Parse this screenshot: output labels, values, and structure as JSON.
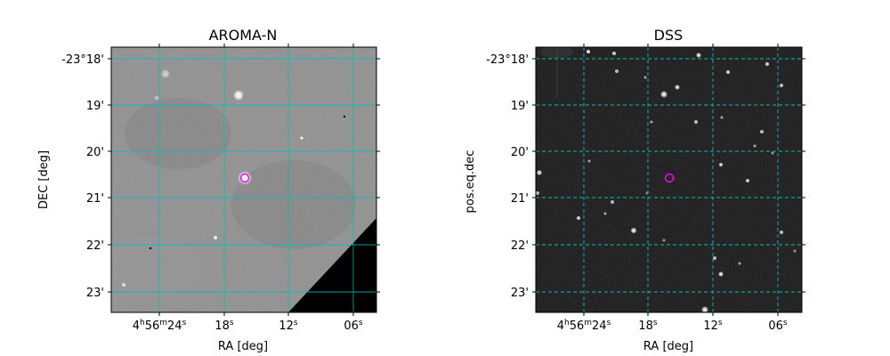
{
  "panels": [
    {
      "title": "AROMA-N",
      "xlabel": "RA [deg]",
      "ylabel": "DEC [deg]",
      "image": "greyscale-sky-image"
    },
    {
      "title": "DSS",
      "xlabel": "RA [deg]",
      "ylabel": "pos.eq.dec",
      "image": "dark-sky-survey-image"
    }
  ],
  "dec_ticks": [
    "-23°18'",
    "19'",
    "20'",
    "21'",
    "22'",
    "23'"
  ],
  "ra_ticks": [
    {
      "h": "4",
      "hu": "h",
      "m": "56",
      "mu": "m",
      "s": "24",
      "su": "s"
    },
    {
      "h": "",
      "hu": "",
      "m": "",
      "mu": "",
      "s": "18",
      "su": "s"
    },
    {
      "h": "",
      "hu": "",
      "m": "",
      "mu": "",
      "s": "12",
      "su": "s"
    },
    {
      "h": "",
      "hu": "",
      "m": "",
      "mu": "",
      "s": "06",
      "su": "s"
    }
  ],
  "colors": {
    "grid": "#00bfbf",
    "marker": "#ff00ff",
    "aroma_bg": "#8c8c8c",
    "dss_bg": "#151515"
  }
}
